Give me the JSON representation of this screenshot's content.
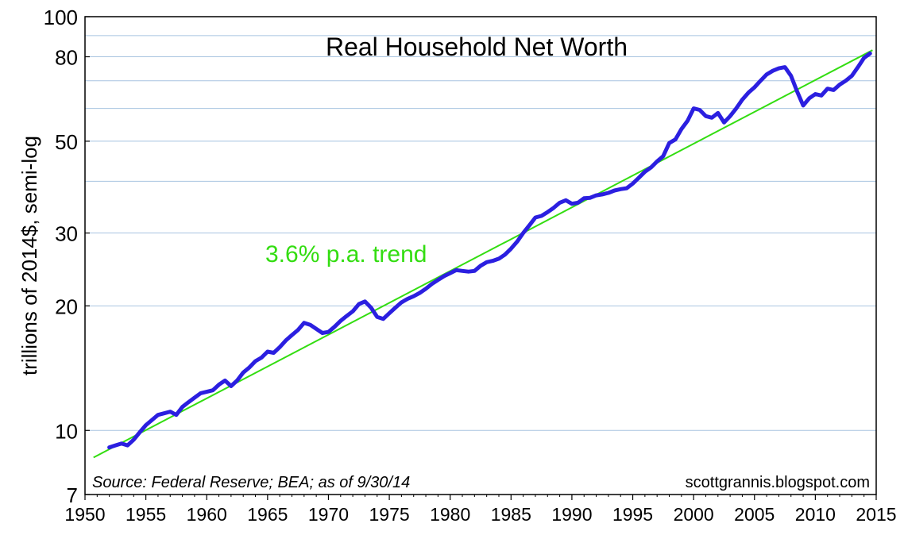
{
  "chart_data": {
    "type": "line",
    "title": "Real Household Net Worth",
    "ylabel": "trillions of 2014$, semi-log",
    "xlabel": "",
    "y_scale": "log",
    "xlim": [
      1950,
      2015
    ],
    "ylim": [
      7,
      100
    ],
    "x_ticks": [
      "1950",
      "1955",
      "1960",
      "1965",
      "1970",
      "1975",
      "1980",
      "1985",
      "1990",
      "1995",
      "2000",
      "2005",
      "2010",
      "2015"
    ],
    "y_ticks": [
      "7",
      "10",
      "20",
      "30",
      "50",
      "80",
      "100"
    ],
    "grid": true,
    "source": "Source: Federal Reserve; BEA; as of 9/30/14",
    "watermark": "scottgrannis.blogspot.com",
    "annotation": "3.6% p.a. trend",
    "colors": {
      "series": "#2b1fe0",
      "trend": "#33dd11",
      "grid": "#a8c4e0",
      "axis": "#000000"
    },
    "series": [
      {
        "values_x": [
          1952.0,
          1952.5,
          1953.0,
          1953.5,
          1954.0,
          1954.5,
          1955.0,
          1955.5,
          1956.0,
          1956.5,
          1957.0,
          1957.5,
          1958.0,
          1958.5,
          1959.0,
          1959.5,
          1960.0,
          1960.5,
          1961.0,
          1961.5,
          1962.0,
          1962.5,
          1963.0,
          1963.5,
          1964.0,
          1964.5,
          1965.0,
          1965.5,
          1966.0,
          1966.5,
          1967.0,
          1967.5,
          1968.0,
          1968.5,
          1969.0,
          1969.5,
          1970.0,
          1970.5,
          1971.0,
          1971.5,
          1972.0,
          1972.5,
          1973.0,
          1973.5,
          1974.0,
          1974.5,
          1975.0,
          1975.5,
          1976.0,
          1976.5,
          1977.0,
          1977.5,
          1978.0,
          1978.5,
          1979.0,
          1979.5,
          1980.0,
          1980.5,
          1981.0,
          1981.5,
          1982.0,
          1982.5,
          1983.0,
          1983.5,
          1984.0,
          1984.5,
          1985.0,
          1985.5,
          1986.0,
          1986.5,
          1987.0,
          1987.5,
          1988.0,
          1988.5,
          1989.0,
          1989.5,
          1990.0,
          1990.5,
          1991.0,
          1991.5,
          1992.0,
          1992.5,
          1993.0,
          1993.5,
          1994.0,
          1994.5,
          1995.0,
          1995.5,
          1996.0,
          1996.5,
          1997.0,
          1997.5,
          1998.0,
          1998.5,
          1999.0,
          1999.5,
          2000.0,
          2000.5,
          2001.0,
          2001.5,
          2002.0,
          2002.5,
          2003.0,
          2003.5,
          2004.0,
          2004.5,
          2005.0,
          2005.5,
          2006.0,
          2006.5,
          2007.0,
          2007.5,
          2008.0,
          2008.5,
          2009.0,
          2009.5,
          2010.0,
          2010.5,
          2011.0,
          2011.5,
          2012.0,
          2012.5,
          2013.0,
          2013.5,
          2014.0,
          2014.5
        ],
        "values_y": [
          9.1,
          9.2,
          9.3,
          9.2,
          9.5,
          9.9,
          10.3,
          10.6,
          10.9,
          11.0,
          11.1,
          10.9,
          11.4,
          11.7,
          12.0,
          12.3,
          12.4,
          12.5,
          12.9,
          13.2,
          12.8,
          13.2,
          13.8,
          14.2,
          14.7,
          15.0,
          15.5,
          15.4,
          15.9,
          16.5,
          17.0,
          17.5,
          18.2,
          18.0,
          17.6,
          17.2,
          17.3,
          17.8,
          18.4,
          18.9,
          19.4,
          20.2,
          20.5,
          19.8,
          18.8,
          18.6,
          19.2,
          19.8,
          20.4,
          20.8,
          21.1,
          21.5,
          22.0,
          22.6,
          23.1,
          23.6,
          24.0,
          24.4,
          24.3,
          24.2,
          24.3,
          25.0,
          25.5,
          25.7,
          26.0,
          26.6,
          27.5,
          28.6,
          30.0,
          31.3,
          32.7,
          33.0,
          33.7,
          34.5,
          35.5,
          36.0,
          35.3,
          35.5,
          36.4,
          36.5,
          37.0,
          37.2,
          37.5,
          38.0,
          38.3,
          38.5,
          39.5,
          40.8,
          42.2,
          43.2,
          44.7,
          46.0,
          49.5,
          50.5,
          53.5,
          56.0,
          60.0,
          59.5,
          57.5,
          57.0,
          58.5,
          55.5,
          57.5,
          60.0,
          63.0,
          65.5,
          67.5,
          70.0,
          72.5,
          74.0,
          75.0,
          75.5,
          72.0,
          66.0,
          61.0,
          63.5,
          65.0,
          64.5,
          67.0,
          66.5,
          68.5,
          70.0,
          72.0,
          75.5,
          79.5,
          81.5
        ]
      }
    ],
    "trend": {
      "x": [
        1950.7,
        2014.7
      ],
      "y": [
        8.6,
        83.0
      ]
    }
  }
}
